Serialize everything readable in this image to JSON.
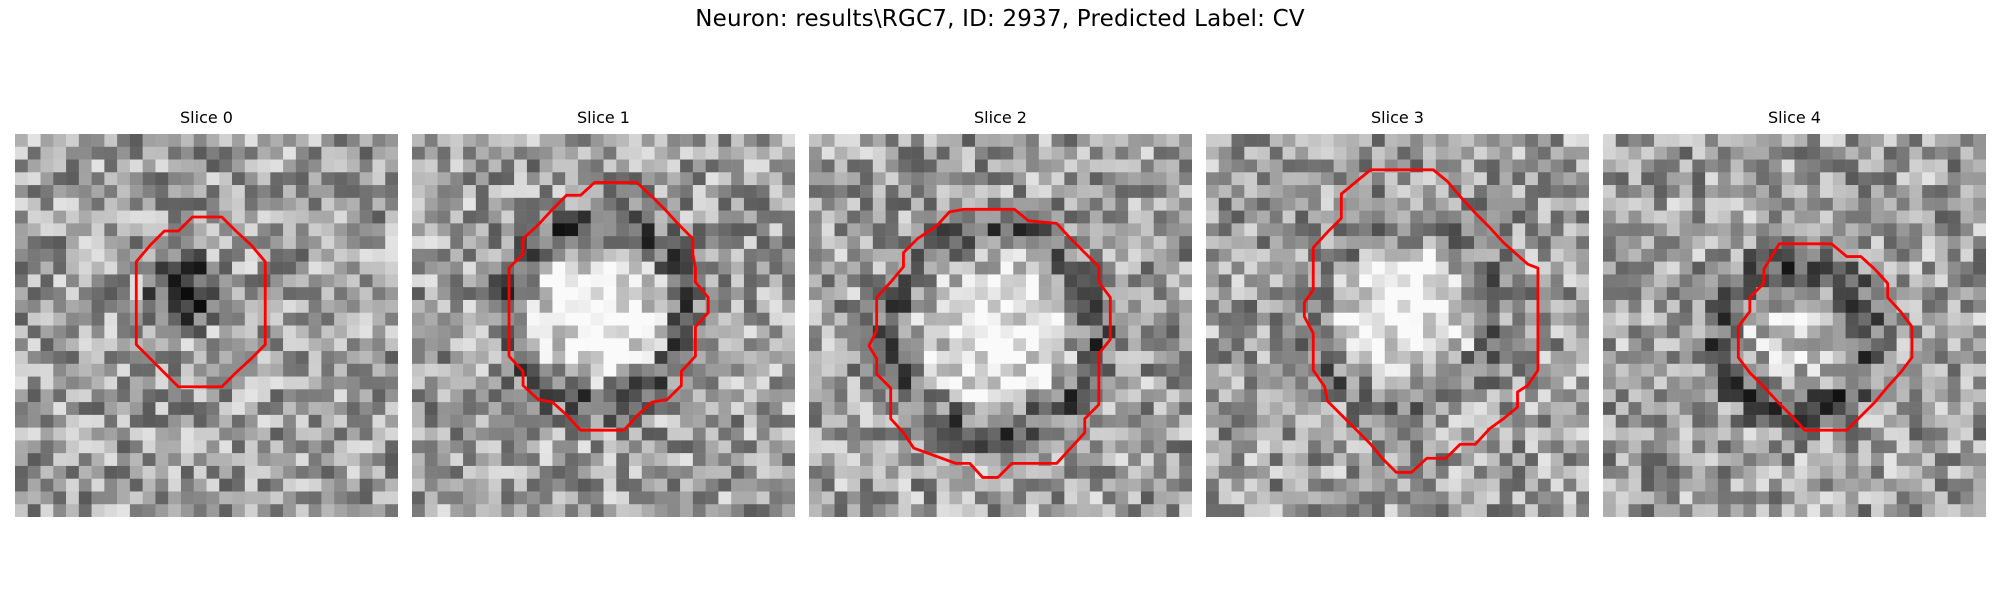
{
  "figure": {
    "title": "Neuron: results\\RGC7, ID: 2937, Predicted Label: CV"
  },
  "panels": [
    {
      "title": "Slice 0"
    },
    {
      "title": "Slice 1"
    },
    {
      "title": "Slice 2"
    },
    {
      "title": "Slice 3"
    },
    {
      "title": "Slice 4"
    }
  ],
  "colors": {
    "contour": "#ff0000",
    "background": "#ffffff"
  }
}
